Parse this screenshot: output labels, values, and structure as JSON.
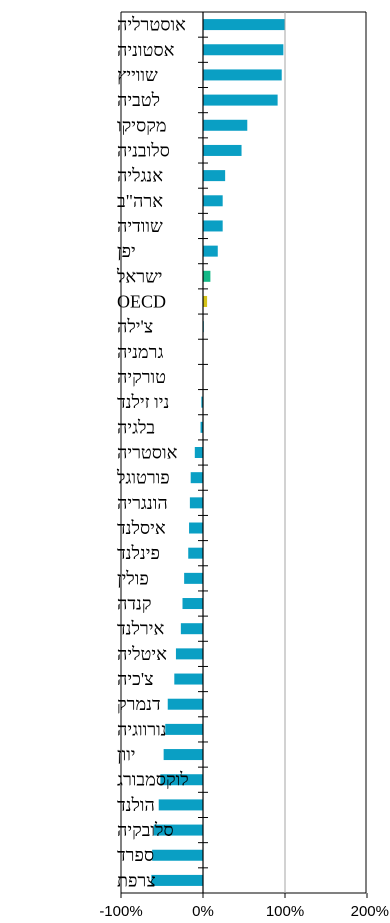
{
  "chart_data": {
    "type": "bar",
    "orientation": "horizontal",
    "title": "",
    "xlabel": "",
    "ylabel": "",
    "xlim": [
      -100,
      200
    ],
    "xticks": [
      -100,
      0,
      100,
      200
    ],
    "xtick_labels": [
      "-100%",
      "0%",
      "100%",
      "200%"
    ],
    "grid": false,
    "reference_line_at": 100,
    "colors": {
      "default": "#0a9fc4",
      "israel": "#12b886",
      "oecd": "#d4c31a",
      "axis": "#000000",
      "reference": "#a6a6a6"
    },
    "categories": [
      "אוסטרליה",
      "אסטוניה",
      "שווייץ",
      "לטביה",
      "מקסיקו",
      "סלובניה",
      "אנגליה",
      "ארה\"ב",
      "שוודיה",
      "יפן",
      "ישראל",
      "OECD",
      "צ'ילה",
      "גרמניה",
      "טורקיה",
      "ניו זילנד",
      "בלגיה",
      "אוסטריה",
      "פורטוגל",
      "הונגריה",
      "איסלנד",
      "פינלנד",
      "פולין",
      "קנדה",
      "אירלנד",
      "איטליה",
      "צ'כיה",
      "דנמרק",
      "נורווגיה",
      "יוון",
      "לוקסמבורג",
      "הולנד",
      "סלובקיה",
      "ספרד",
      "צרפת"
    ],
    "values": [
      100,
      98,
      96,
      91,
      54,
      47,
      27,
      24,
      24,
      18,
      9,
      5,
      1,
      0,
      0,
      -2,
      -3,
      -10,
      -15,
      -16,
      -17,
      -18,
      -23,
      -25,
      -27,
      -33,
      -35,
      -43,
      -46,
      -48,
      -52,
      -54,
      -60,
      -62,
      -63
    ]
  }
}
